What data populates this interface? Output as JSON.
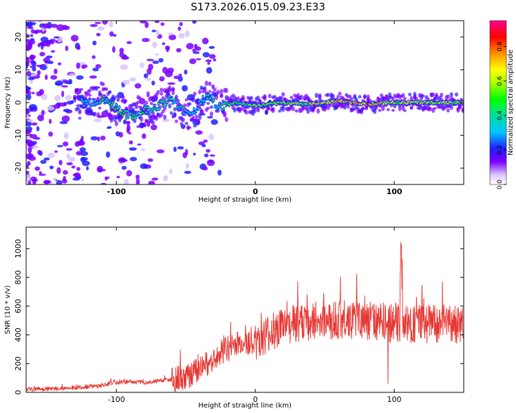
{
  "title": "S173.2026.015.09.23.E33",
  "colors": {
    "snr_line": "#e53935",
    "frame": "#000000"
  },
  "chart_data": [
    {
      "type": "heatmap",
      "title": "S173.2026.015.09.23.E33",
      "xlabel": "Height of straight line (km)",
      "ylabel": "Frequency (Hz)",
      "xlim": [
        -165,
        150
      ],
      "ylim": [
        -25,
        25
      ],
      "xticks": [
        -100,
        0,
        100
      ],
      "xtick_labels": [
        "-100",
        "0",
        "100"
      ],
      "yticks": [
        -20,
        -10,
        0,
        10,
        20
      ],
      "ytick_labels": [
        "-20",
        "-10",
        "0",
        "10",
        "20"
      ],
      "colorbar": {
        "label": "Normalized spectral amplitude",
        "range": [
          0,
          0.95
        ],
        "ticks": [
          0.0,
          0.2,
          0.4,
          0.6,
          0.8
        ],
        "tick_labels": [
          "0.0",
          "0.2",
          "0.4",
          "0.6",
          "0.8"
        ]
      },
      "ridge": [
        {
          "x": -120,
          "f": 0.0,
          "amp": 0.3
        },
        {
          "x": -110,
          "f": 1.0,
          "amp": 0.4
        },
        {
          "x": -100,
          "f": -1.5,
          "amp": 0.45
        },
        {
          "x": -90,
          "f": -4.5,
          "amp": 0.4
        },
        {
          "x": -80,
          "f": -2.5,
          "amp": 0.45
        },
        {
          "x": -70,
          "f": -1.0,
          "amp": 0.4
        },
        {
          "x": -60,
          "f": 1.5,
          "amp": 0.4
        },
        {
          "x": -55,
          "f": -2.0,
          "amp": 0.35
        },
        {
          "x": -45,
          "f": -3.0,
          "amp": 0.35
        },
        {
          "x": -35,
          "f": 2.0,
          "amp": 0.35
        },
        {
          "x": -25,
          "f": -1.5,
          "amp": 0.4
        },
        {
          "x": -15,
          "f": 0.0,
          "amp": 0.5
        },
        {
          "x": 0,
          "f": -1.0,
          "amp": 0.5
        },
        {
          "x": 20,
          "f": 0.0,
          "amp": 0.55
        },
        {
          "x": 40,
          "f": -0.5,
          "amp": 0.6
        },
        {
          "x": 60,
          "f": 0.5,
          "amp": 0.65
        },
        {
          "x": 80,
          "f": -0.5,
          "amp": 0.75
        },
        {
          "x": 100,
          "f": 0.0,
          "amp": 0.55
        },
        {
          "x": 120,
          "f": 0.0,
          "amp": 0.6
        },
        {
          "x": 150,
          "f": 0.0,
          "amp": 0.6
        }
      ]
    },
    {
      "type": "line",
      "xlabel": "Height of straight line (km)",
      "ylabel": "SNR (10 * v/v)",
      "xlim": [
        -165,
        150
      ],
      "ylim": [
        0,
        1150
      ],
      "xticks": [
        -100,
        0,
        100
      ],
      "xtick_labels": [
        "-100",
        "0",
        "100"
      ],
      "yticks": [
        0,
        200,
        400,
        600,
        800,
        1000
      ],
      "ytick_labels": [
        "0",
        "200",
        "400",
        "600",
        "800",
        "1000"
      ],
      "series": [
        {
          "name": "SNR",
          "x": [
            -165,
            -150,
            -140,
            -130,
            -120,
            -110,
            -100,
            -90,
            -80,
            -70,
            -60,
            -50,
            -45,
            -40,
            -35,
            -30,
            -25,
            -20,
            -15,
            -10,
            -5,
            0,
            5,
            10,
            15,
            20,
            25,
            30,
            40,
            50,
            60,
            70,
            80,
            90,
            100,
            105,
            110,
            120,
            130,
            140,
            150
          ],
          "y": [
            20,
            25,
            25,
            30,
            40,
            50,
            70,
            75,
            70,
            80,
            90,
            100,
            130,
            160,
            200,
            240,
            280,
            300,
            330,
            340,
            340,
            360,
            370,
            400,
            440,
            460,
            470,
            480,
            490,
            500,
            510,
            510,
            500,
            490,
            480,
            470,
            470,
            470,
            470,
            470,
            470
          ]
        }
      ]
    }
  ]
}
